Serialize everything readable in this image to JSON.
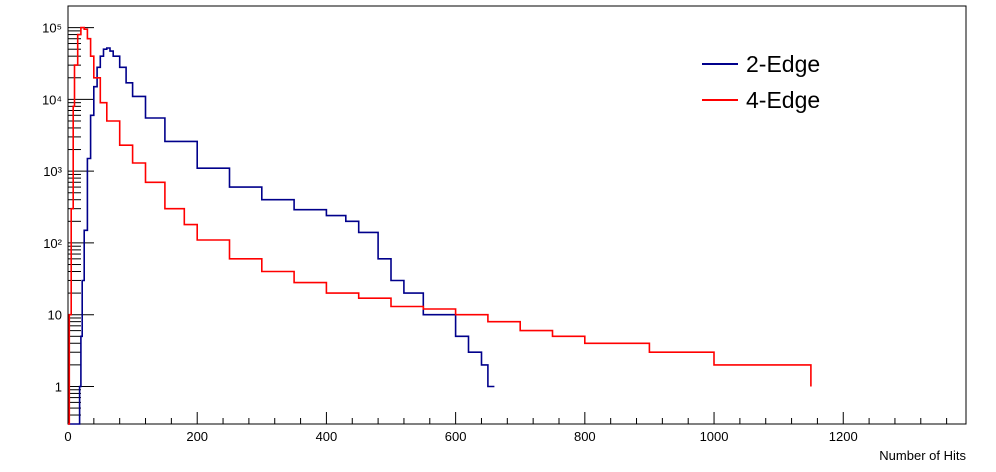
{
  "chart_data": {
    "type": "line",
    "title": "",
    "xlabel": "Number of Hits",
    "ylabel": "",
    "xlim": [
      0,
      1390
    ],
    "ylim": [
      0.3,
      200000
    ],
    "yscale": "log",
    "grid": false,
    "legend_position": "top-right",
    "x_tick_labels": [
      "0",
      "200",
      "400",
      "600",
      "800",
      "1000",
      "1200"
    ],
    "y_tick_labels": [
      "1",
      "10",
      "10²",
      "10³",
      "10⁴",
      "10⁵"
    ],
    "series": [
      {
        "name": "2-Edge",
        "color": "#00008b",
        "x": [
          0,
          15,
          18,
          20,
          22,
          25,
          30,
          35,
          40,
          45,
          50,
          55,
          60,
          65,
          70,
          80,
          90,
          100,
          120,
          150,
          200,
          250,
          300,
          350,
          400,
          430,
          450,
          480,
          500,
          520,
          550,
          600,
          620,
          640,
          650,
          660
        ],
        "y": [
          0,
          0,
          1,
          5,
          30,
          150,
          1500,
          6000,
          15000,
          28000,
          40000,
          50000,
          52000,
          47000,
          40000,
          28000,
          17000,
          11000,
          5500,
          2600,
          1100,
          600,
          400,
          290,
          240,
          200,
          140,
          60,
          30,
          20,
          10,
          5,
          3,
          2,
          1,
          1
        ]
      },
      {
        "name": "4-Edge",
        "color": "#ff0000",
        "x": [
          0,
          2,
          5,
          8,
          10,
          15,
          20,
          25,
          30,
          35,
          40,
          50,
          60,
          80,
          100,
          120,
          150,
          180,
          200,
          250,
          300,
          350,
          400,
          450,
          500,
          550,
          600,
          650,
          700,
          750,
          800,
          850,
          900,
          950,
          1000,
          1050,
          1100,
          1150
        ],
        "y": [
          0,
          10,
          300,
          8000,
          30000,
          80000,
          100000,
          95000,
          70000,
          40000,
          20000,
          9000,
          5000,
          2300,
          1300,
          700,
          300,
          180,
          110,
          60,
          40,
          28,
          20,
          17,
          13,
          12,
          10,
          8,
          6,
          5,
          4,
          4,
          3,
          3,
          2,
          2,
          2,
          1
        ]
      }
    ]
  }
}
